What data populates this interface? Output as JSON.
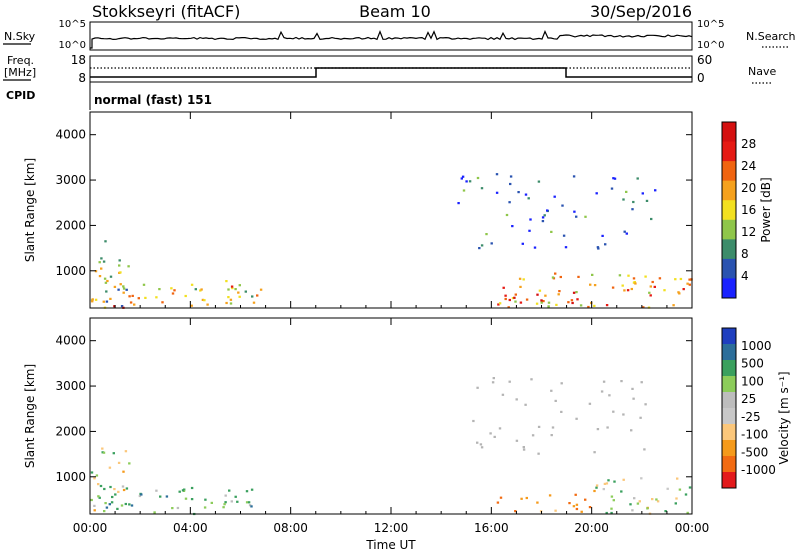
{
  "header": {
    "station": "Stokkseyri (fitACF)",
    "beam": "Beam 10",
    "date": "30/Sep/2016"
  },
  "noise_panel": {
    "left_label": "N.Sky",
    "left_ticks": [
      "10^5",
      "10^0"
    ],
    "right_label": "N.Search",
    "right_ticks": [
      "10^5",
      "10^0"
    ]
  },
  "freq_panel": {
    "left_label_1": "Freq.",
    "left_label_2": "[MHz]",
    "left_ticks": [
      "18",
      "8"
    ],
    "right_label": "Nave",
    "right_ticks": [
      "60",
      "0"
    ],
    "cpid_label": "CPID",
    "mode_text": "normal (fast) 151"
  },
  "colors": {
    "power": [
      "#1a22ff",
      "#2a53b0",
      "#3c8c6a",
      "#8fc64a",
      "#f2e020",
      "#f5a11d",
      "#f06410",
      "#e51a14",
      "#d41010"
    ],
    "velocity": [
      "#e31a1c",
      "#f26b12",
      "#f59a1b",
      "#fbc77b",
      "#c8c8c8",
      "#bdbdbd",
      "#8ccc5a",
      "#3aa05e",
      "#2c6e9a",
      "#1f3fbf"
    ],
    "ground_scatter": "#b4b4b4"
  },
  "chart_data": [
    {
      "type": "heatmap",
      "name": "power",
      "xlabel": "",
      "ylabel": "Slant Range [km]",
      "ylim": [
        180,
        4500
      ],
      "yticks": [
        "1000",
        "2000",
        "3000",
        "4000"
      ],
      "ytick_values": [
        1000,
        2000,
        3000,
        4000
      ],
      "xlim": [
        0,
        24
      ],
      "xticks": [
        "00:00",
        "04:00",
        "08:00",
        "12:00",
        "16:00",
        "20:00",
        "00:00"
      ],
      "xtick_values": [
        0,
        4,
        8,
        12,
        16,
        20,
        24
      ],
      "colorbar": {
        "label": "Power [dB]",
        "ticks": [
          "4",
          "8",
          "12",
          "16",
          "20",
          "24",
          "28"
        ],
        "range": [
          0,
          32
        ]
      },
      "scatter_regions": [
        {
          "t": [
            0.0,
            6.8
          ],
          "r": [
            200,
            800
          ],
          "level": 0.55
        },
        {
          "t": [
            0.0,
            1.6
          ],
          "r": [
            200,
            1700
          ],
          "level": 0.4
        },
        {
          "t": [
            0.7,
            1.3
          ],
          "r": [
            200,
            450
          ],
          "level": 0.85
        },
        {
          "t": [
            16.2,
            24.0
          ],
          "r": [
            200,
            1000
          ],
          "level": 0.6
        },
        {
          "t": [
            16.5,
            19.5
          ],
          "r": [
            250,
            550
          ],
          "level": 0.9
        },
        {
          "t": [
            14.5,
            22.5
          ],
          "r": [
            1500,
            3200
          ],
          "level": 0.15
        }
      ]
    },
    {
      "type": "heatmap",
      "name": "velocity",
      "xlabel": "Time UT",
      "ylabel": "Slant Range [km]",
      "ylim": [
        180,
        4500
      ],
      "yticks": [
        "1000",
        "2000",
        "3000",
        "4000"
      ],
      "ytick_values": [
        1000,
        2000,
        3000,
        4000
      ],
      "xlim": [
        0,
        24
      ],
      "xticks": [
        "00:00",
        "04:00",
        "08:00",
        "12:00",
        "16:00",
        "20:00",
        "00:00"
      ],
      "xtick_values": [
        0,
        4,
        8,
        12,
        16,
        20,
        24
      ],
      "colorbar": {
        "label": "Velocity [m s⁻¹]",
        "ticks": [
          "-1000",
          "-500",
          "-100",
          "-25",
          "25",
          "100",
          "500",
          "1000"
        ]
      },
      "scatter_regions": [
        {
          "t": [
            0.0,
            6.8
          ],
          "r": [
            200,
            800
          ],
          "v": 150
        },
        {
          "t": [
            0.0,
            1.6
          ],
          "r": [
            200,
            1700
          ],
          "v": 30
        },
        {
          "t": [
            16.2,
            20.0
          ],
          "r": [
            250,
            650
          ],
          "v": -200
        },
        {
          "t": [
            20.0,
            24.0
          ],
          "r": [
            200,
            1000
          ],
          "v": 40
        },
        {
          "t": [
            14.5,
            22.5
          ],
          "r": [
            1500,
            3200
          ],
          "v": 0
        }
      ]
    }
  ],
  "x_axis_title": "Time UT"
}
